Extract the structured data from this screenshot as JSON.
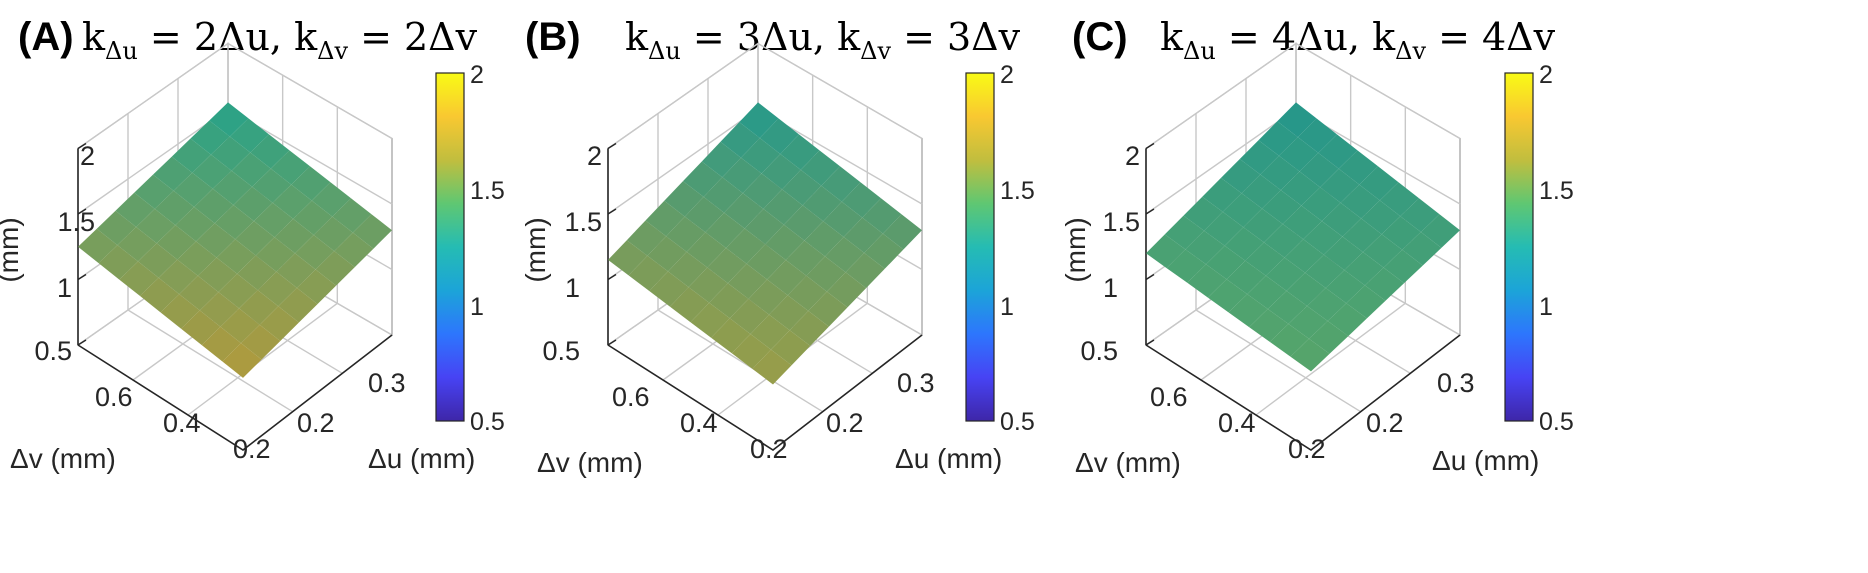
{
  "chart_data": [
    {
      "type": "surface",
      "panel_label": "(A)",
      "title_parts": [
        "k",
        "Δu",
        " = 2Δu, k",
        "Δv",
        " = 2Δv"
      ],
      "xlabel": "Δu (mm)",
      "ylabel": "Δv (mm)",
      "zlabel": "(mm)",
      "x_ticks": [
        "0.2",
        "0.3"
      ],
      "y_ticks": [
        "0.2",
        "0.4",
        "0.6"
      ],
      "z_ticks": [
        "0.5",
        "1",
        "1.5",
        "2"
      ],
      "zlim": [
        0.5,
        2
      ],
      "colorbar": {
        "range": [
          0.5,
          2
        ],
        "ticks": [
          "0.5",
          "1",
          "1.5",
          "2"
        ]
      },
      "surface": {
        "corner_left": 1.25,
        "corner_front": 1.05,
        "corner_right": 1.3,
        "corner_back": 1.55,
        "color_low": "#b39a3c",
        "color_high": "#24a38a"
      }
    },
    {
      "type": "surface",
      "panel_label": "(B)",
      "title_parts": [
        "k",
        "Δu",
        " = 3Δu, k",
        "Δv",
        " = 3Δv"
      ],
      "xlabel": "Δu (mm)",
      "ylabel": "Δv (mm)",
      "zlabel": "(mm)",
      "x_ticks": [
        "0.2",
        "0.3"
      ],
      "y_ticks": [
        "0.2",
        "0.4",
        "0.6"
      ],
      "z_ticks": [
        "0.5",
        "1",
        "1.5",
        "2"
      ],
      "zlim": [
        0.5,
        2
      ],
      "colorbar": {
        "range": [
          0.5,
          2
        ],
        "ticks": [
          "0.5",
          "1",
          "1.5",
          "2"
        ]
      },
      "surface": {
        "corner_left": 1.15,
        "corner_front": 1.0,
        "corner_right": 1.3,
        "corner_back": 1.55,
        "color_low": "#9c9d47",
        "color_high": "#239a8c"
      }
    },
    {
      "type": "surface",
      "panel_label": "(C)",
      "title_parts": [
        "k",
        "Δu",
        " = 4Δu, k",
        "Δv",
        " = 4Δv"
      ],
      "xlabel": "Δu (mm)",
      "ylabel": "Δv (mm)",
      "zlabel": "(mm)",
      "x_ticks": [
        "0.2",
        "0.3"
      ],
      "y_ticks": [
        "0.2",
        "0.4",
        "0.6"
      ],
      "z_ticks": [
        "0.5",
        "1",
        "1.5",
        "2"
      ],
      "zlim": [
        0.5,
        2
      ],
      "colorbar": {
        "range": [
          0.5,
          2
        ],
        "ticks": [
          "0.5",
          "1",
          "1.5",
          "2"
        ]
      },
      "surface": {
        "corner_left": 1.2,
        "corner_front": 1.1,
        "corner_right": 1.3,
        "corner_back": 1.55,
        "color_low": "#57a56a",
        "color_high": "#23968c"
      }
    }
  ],
  "colormap": [
    "#3e26a8",
    "#4743f4",
    "#2d76fd",
    "#1ca4d8",
    "#25bcb3",
    "#5fc772",
    "#c1be3e",
    "#f9c831",
    "#f9fb15"
  ]
}
